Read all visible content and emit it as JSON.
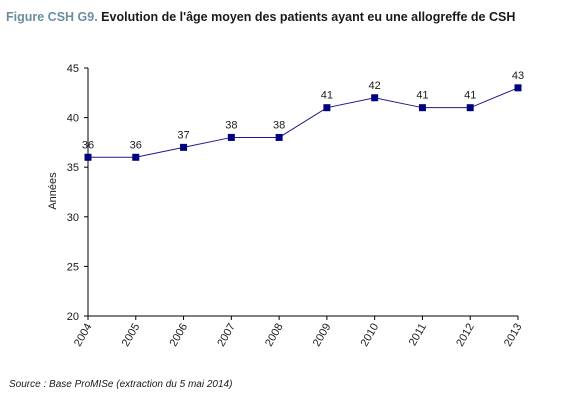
{
  "figure_label": "Figure CSH G9.",
  "title": "Evolution de l'âge moyen des patients ayant eu une allogreffe de CSH",
  "source": "Source : Base ProMISe (extraction du 5 mai 2014)",
  "colors": {
    "series": "#000080",
    "line": "#1a1a8c",
    "axis": "#000000",
    "label_prefix": "#6b8e9e"
  },
  "chart_data": {
    "type": "line",
    "title": "Evolution de l'âge moyen des patients ayant eu une allogreffe de CSH",
    "xlabel": "",
    "ylabel": "Années",
    "categories": [
      "2004",
      "2005",
      "2006",
      "2007",
      "2008",
      "2009",
      "2010",
      "2011",
      "2012",
      "2013"
    ],
    "series": [
      {
        "values": [
          36,
          36,
          37,
          38,
          38,
          41,
          42,
          41,
          41,
          43
        ],
        "data_labels": true,
        "marker": "square"
      }
    ],
    "ylim": [
      20,
      45
    ],
    "yticks": [
      20,
      25,
      30,
      35,
      40,
      45
    ],
    "grid": false,
    "legend": "none"
  }
}
